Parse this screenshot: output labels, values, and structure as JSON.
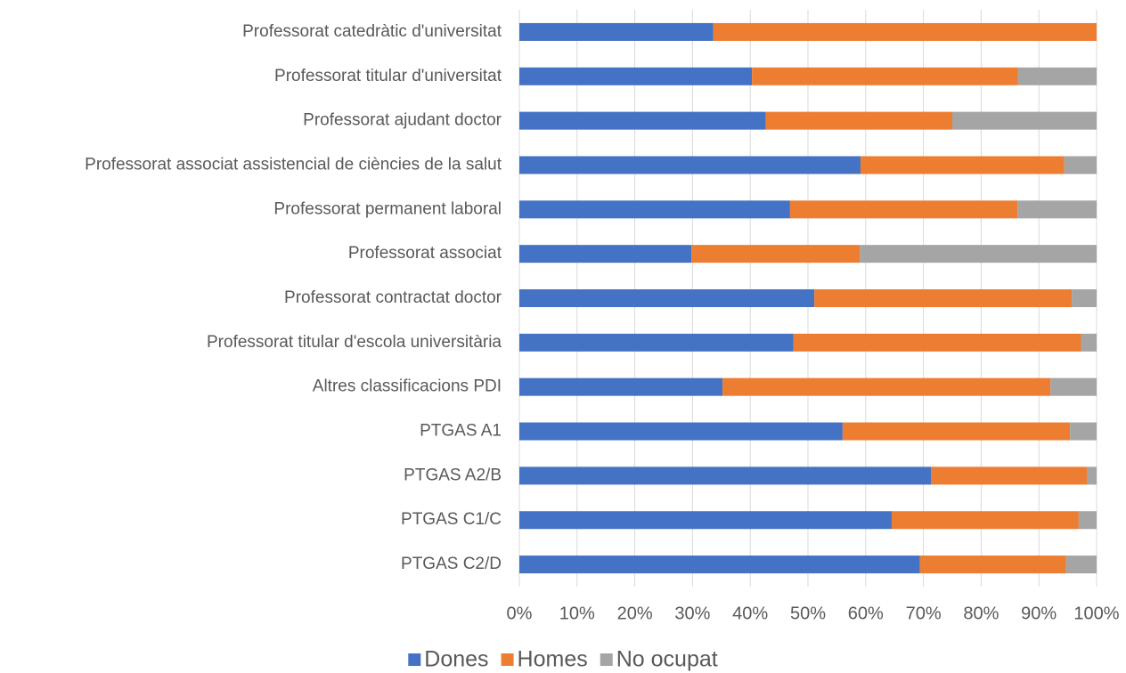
{
  "chart_data": {
    "type": "stacked-barh",
    "categories": [
      "Professorat catedràtic d'universitat",
      "Professorat titular d'universitat",
      "Professorat ajudant doctor",
      "Professorat associat assistencial de ciències de la salut",
      "Professorat permanent laboral",
      "Professorat associat",
      "Professorat contractat doctor",
      "Professorat titular d'escola universitària",
      "Altres classificacions PDI",
      "PTGAS A1",
      "PTGAS A2/B",
      "PTGAS C1/C",
      "PTGAS C2/D"
    ],
    "series": [
      {
        "name": "Dones",
        "color": "#4472c4",
        "values": [
          33.6,
          40.3,
          42.7,
          59.1,
          46.9,
          29.8,
          51.1,
          47.5,
          35.2,
          56.0,
          71.3,
          64.5,
          69.4
        ]
      },
      {
        "name": "Homes",
        "color": "#ed7d31",
        "values": [
          66.4,
          46.1,
          32.3,
          35.3,
          39.4,
          29.2,
          44.6,
          49.8,
          56.8,
          39.4,
          27.0,
          32.4,
          25.3
        ]
      },
      {
        "name": "No ocupat",
        "color": "#a5a5a5",
        "values": [
          0,
          13.6,
          25.0,
          5.6,
          13.7,
          41.0,
          4.3,
          2.7,
          8.0,
          4.6,
          1.7,
          3.1,
          5.3
        ]
      }
    ],
    "xlim": [
      0,
      100
    ],
    "xticks": [
      {
        "value": 0,
        "label": "0%"
      },
      {
        "value": 10,
        "label": "10%"
      },
      {
        "value": 20,
        "label": "20%"
      },
      {
        "value": 30,
        "label": "30%"
      },
      {
        "value": 40,
        "label": "40%"
      },
      {
        "value": 50,
        "label": "50%"
      },
      {
        "value": 60,
        "label": "60%"
      },
      {
        "value": 70,
        "label": "70%"
      },
      {
        "value": 80,
        "label": "80%"
      },
      {
        "value": 90,
        "label": "90%"
      },
      {
        "value": 100,
        "label": "100%"
      }
    ],
    "grid": true,
    "legend": "bottom"
  }
}
